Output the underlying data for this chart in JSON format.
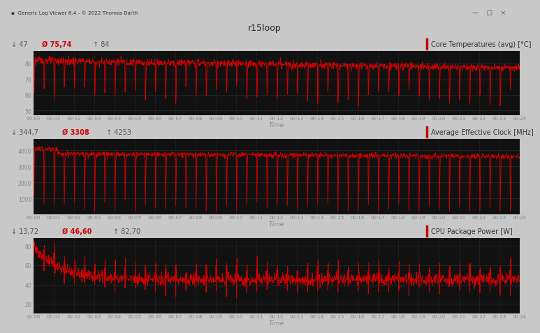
{
  "title": "r15loop",
  "window_title": "Generic Log Viewer 6.4 - © 2022 Thomas Barth",
  "line_color": "#cc0000",
  "time_ticks": [
    "00:00",
    "00:01",
    "00:02",
    "00:03",
    "00:04",
    "00:05",
    "00:06",
    "00:07",
    "00:08",
    "00:09",
    "00:10",
    "00:11",
    "00:12",
    "00:13",
    "00:14",
    "00:15",
    "00:16",
    "00:17",
    "00:18",
    "00:19",
    "00:20",
    "00:21",
    "00:22",
    "00:23",
    "00:24"
  ],
  "panel1": {
    "label": "Core Temperatures (avg) [°C]",
    "stat_min": "↓ 47",
    "stat_avg": "Ø 75,74",
    "stat_max": "↑ 84",
    "ylim": [
      47,
      88
    ],
    "yticks": [
      50,
      60,
      70,
      80
    ]
  },
  "panel2": {
    "label": "Average Effective Clock [MHz]",
    "stat_min": "↓ 344,7",
    "stat_avg": "Ø 3308",
    "stat_max": "↑ 4253",
    "ylim": [
      0,
      4700
    ],
    "yticks": [
      1000,
      2000,
      3000,
      4000
    ]
  },
  "panel3": {
    "label": "CPU Package Power [W]",
    "stat_min": "↓ 13,72",
    "stat_avg": "Ø 46,60",
    "stat_max": "↑ 82,70",
    "ylim": [
      10,
      88
    ],
    "yticks": [
      20,
      40,
      60,
      80
    ]
  },
  "chart_bg": "#111111",
  "grid_color": "#2a2a2a",
  "tick_color": "#888888",
  "header_bg": "#ffffff",
  "titlebar_bg": "#f0f0f0",
  "main_header_bg": "#ffffff",
  "separator_bg": "#c0c0c0",
  "fig_bg": "#c8c8c8"
}
